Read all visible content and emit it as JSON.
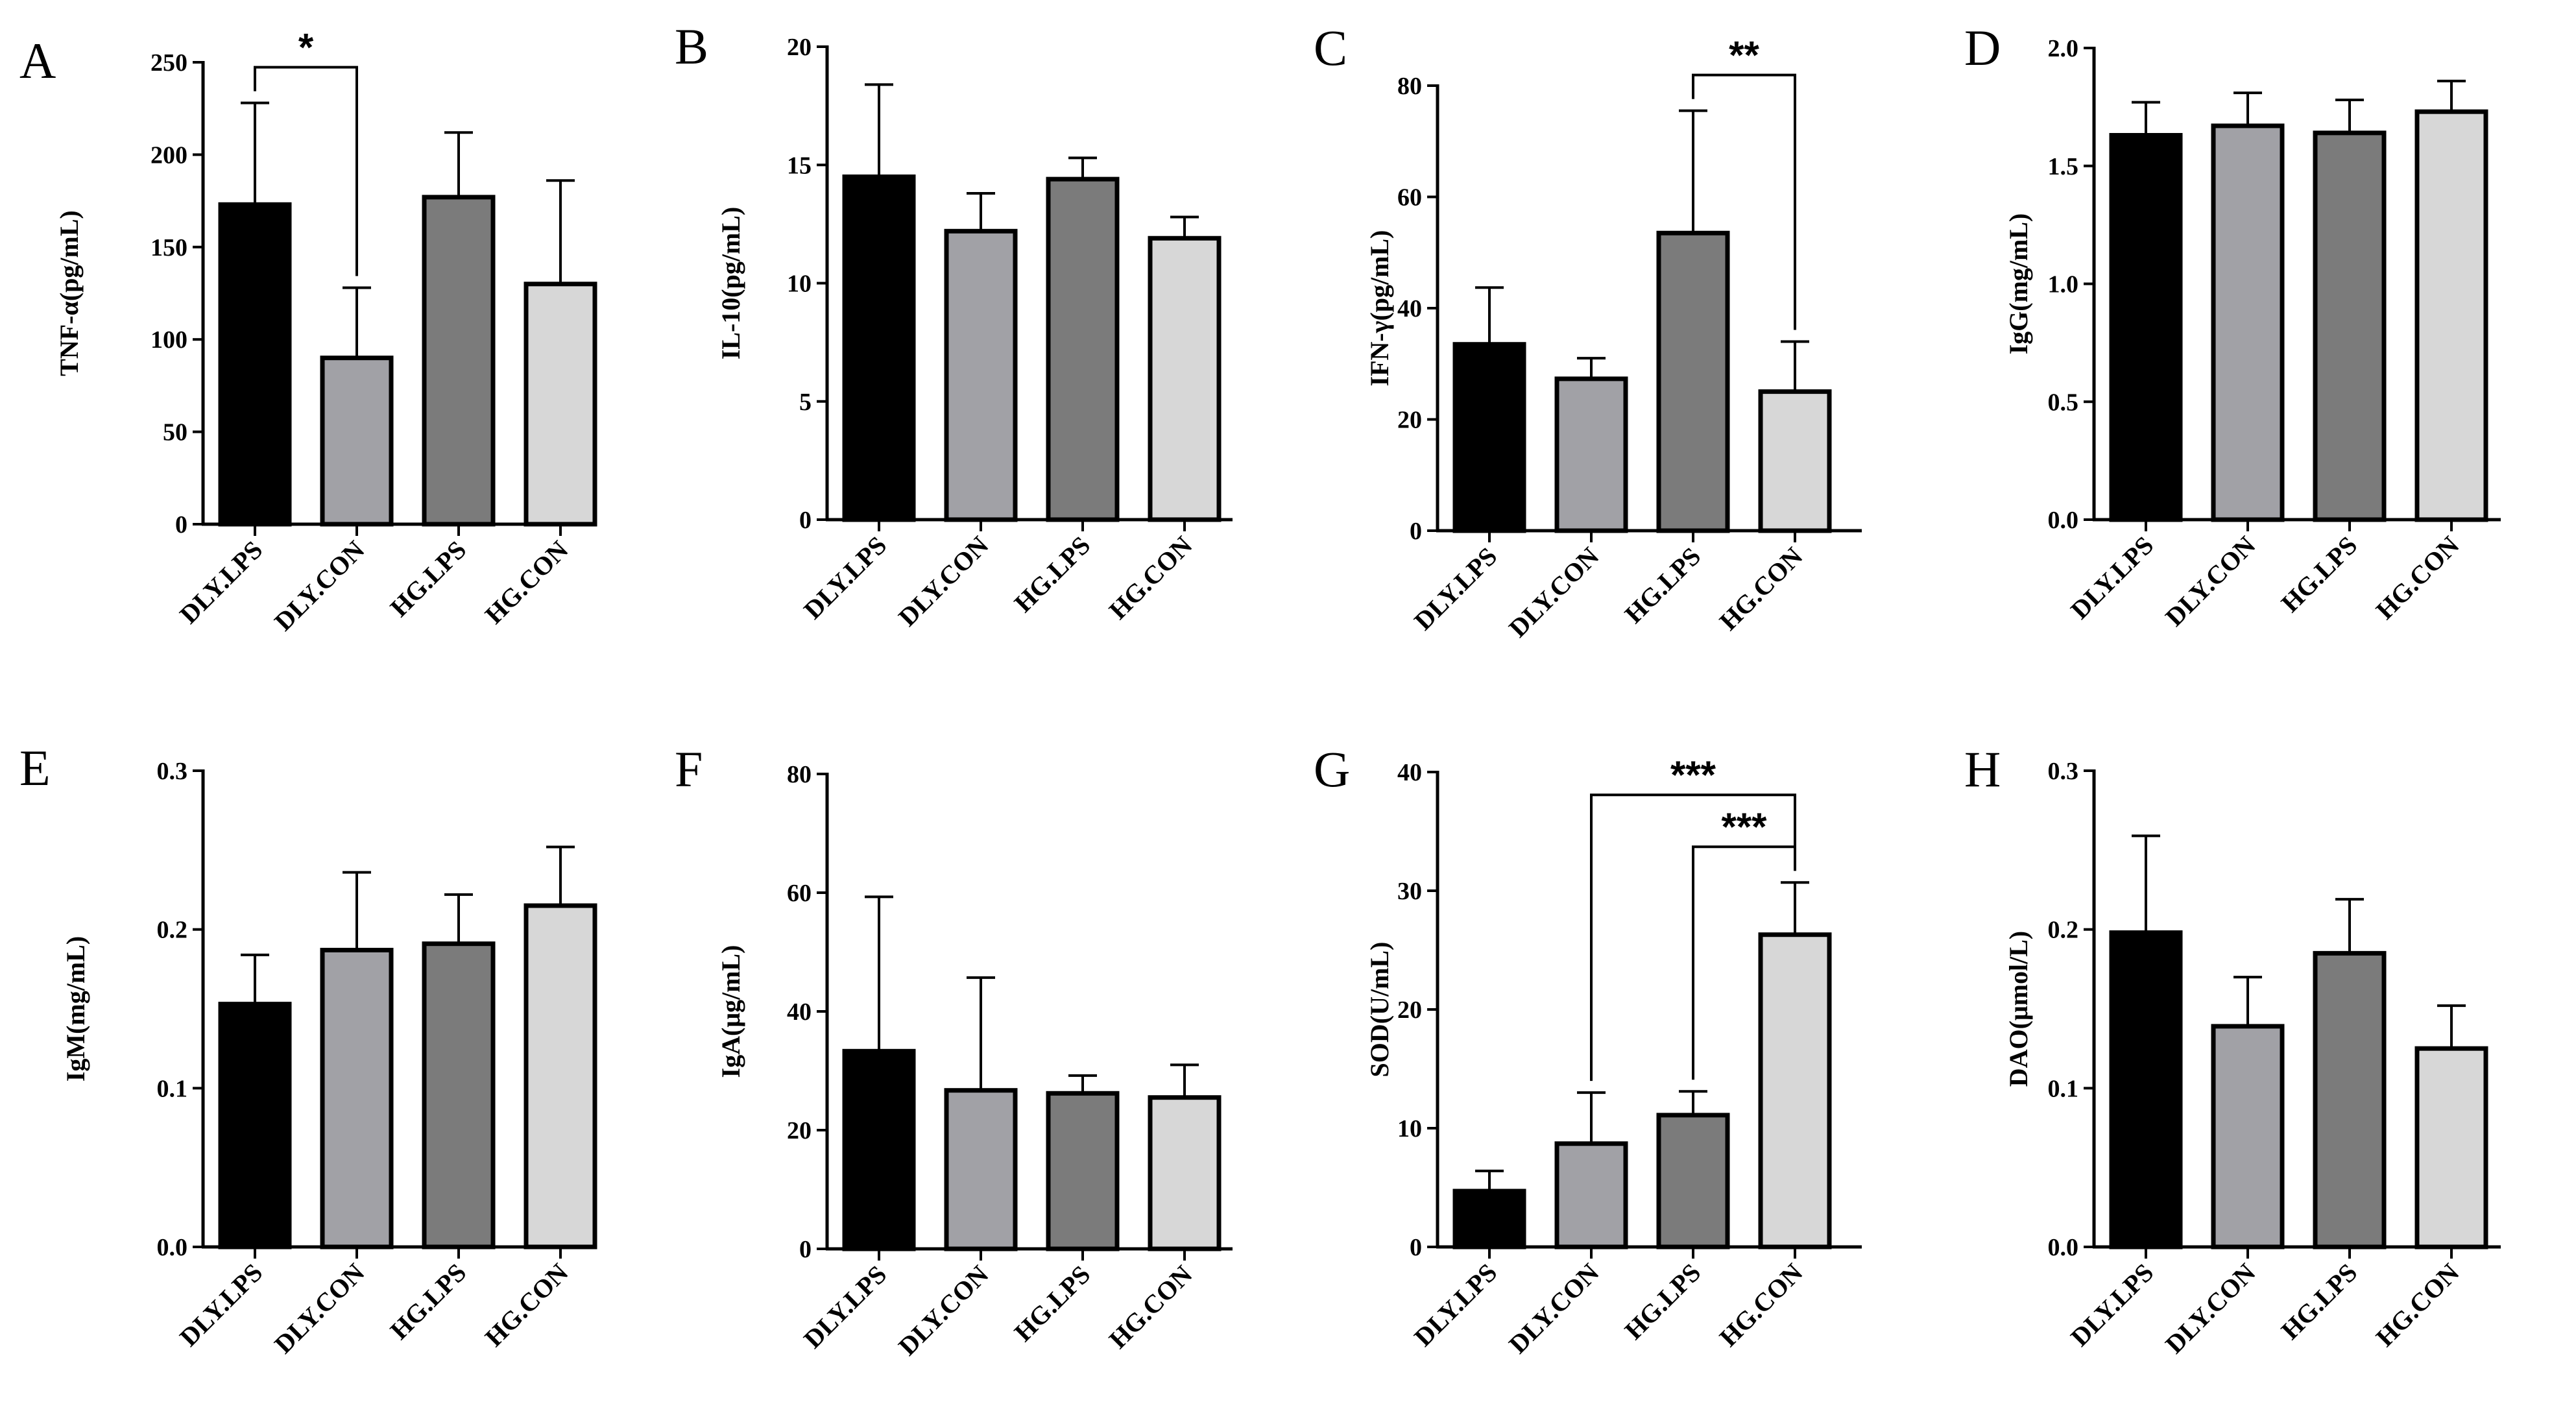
{
  "colors": {
    "DLY.LPS": "#000000",
    "DLY.CON": "#a1a1a6",
    "HG.LPS": "#7b7b7b",
    "HG.CON": "#d7d7d7",
    "axis": "#000000"
  },
  "chart_data": [
    {
      "panel": "A",
      "type": "bar",
      "ylabel": "TNF-α(pg/mL)",
      "categories": [
        "DLY.LPS",
        "DLY.CON",
        "HG.LPS",
        "HG.CON"
      ],
      "values": [
        173,
        90,
        177,
        130
      ],
      "errors": [
        55,
        38,
        35,
        56
      ],
      "ylim": [
        0,
        250
      ],
      "yticks": [
        0,
        50,
        100,
        150,
        200,
        250
      ],
      "ytick_labels": [
        "0",
        "50",
        "100",
        "150",
        "200",
        "250"
      ],
      "significance": [
        {
          "from": 0,
          "to": 1,
          "label": "*"
        }
      ]
    },
    {
      "panel": "B",
      "type": "bar",
      "ylabel": "IL-10(pg/mL)",
      "categories": [
        "DLY.LPS",
        "DLY.CON",
        "HG.LPS",
        "HG.CON"
      ],
      "values": [
        14.5,
        12.2,
        14.4,
        11.9
      ],
      "errors": [
        3.9,
        1.6,
        0.9,
        0.9
      ],
      "ylim": [
        0,
        20
      ],
      "yticks": [
        0,
        5,
        10,
        15,
        20
      ],
      "ytick_labels": [
        "0",
        "5",
        "10",
        "15",
        "20"
      ],
      "significance": []
    },
    {
      "panel": "C",
      "type": "bar",
      "ylabel": "IFN-γ(pg/mL)",
      "categories": [
        "DLY.LPS",
        "DLY.CON",
        "HG.LPS",
        "HG.CON"
      ],
      "values": [
        33.5,
        27.3,
        53.5,
        25
      ],
      "errors": [
        10.2,
        3.7,
        22,
        9
      ],
      "ylim": [
        0,
        80
      ],
      "yticks": [
        0,
        20,
        40,
        60,
        80
      ],
      "ytick_labels": [
        "0",
        "20",
        "40",
        "60",
        "80"
      ],
      "significance": [
        {
          "from": 2,
          "to": 3,
          "label": "**"
        }
      ]
    },
    {
      "panel": "D",
      "type": "bar",
      "ylabel": "IgG(mg/mL)",
      "categories": [
        "DLY.LPS",
        "DLY.CON",
        "HG.LPS",
        "HG.CON"
      ],
      "values": [
        1.63,
        1.67,
        1.64,
        1.73
      ],
      "errors": [
        0.14,
        0.14,
        0.14,
        0.13
      ],
      "ylim": [
        0,
        2
      ],
      "yticks": [
        0,
        0.5,
        1,
        1.5,
        2
      ],
      "ytick_labels": [
        "0.0",
        "0.5",
        "1.0",
        "1.5",
        "2.0"
      ],
      "significance": []
    },
    {
      "panel": "E",
      "type": "bar",
      "ylabel": "IgM(mg/mL)",
      "categories": [
        "DLY.LPS",
        "DLY.CON",
        "HG.LPS",
        "HG.CON"
      ],
      "values": [
        0.153,
        0.187,
        0.191,
        0.215
      ],
      "errors": [
        0.031,
        0.049,
        0.031,
        0.037
      ],
      "ylim": [
        0,
        0.3
      ],
      "yticks": [
        0,
        0.1,
        0.2,
        0.3
      ],
      "ytick_labels": [
        "0.0",
        "0.1",
        "0.2",
        "0.3"
      ],
      "significance": []
    },
    {
      "panel": "F",
      "type": "bar",
      "ylabel": "IgA(μg/mL)",
      "categories": [
        "DLY.LPS",
        "DLY.CON",
        "HG.LPS",
        "HG.CON"
      ],
      "values": [
        33.3,
        26.7,
        26.2,
        25.5
      ],
      "errors": [
        26,
        19,
        3,
        5.5
      ],
      "ylim": [
        0,
        80
      ],
      "yticks": [
        0,
        20,
        40,
        60,
        80
      ],
      "ytick_labels": [
        "0",
        "20",
        "40",
        "60",
        "80"
      ],
      "significance": []
    },
    {
      "panel": "G",
      "type": "bar",
      "ylabel": "SOD(U/mL)",
      "categories": [
        "DLY.LPS",
        "DLY.CON",
        "HG.LPS",
        "HG.CON"
      ],
      "values": [
        4.7,
        8.7,
        11.1,
        26.3
      ],
      "errors": [
        1.7,
        4.3,
        2,
        4.4
      ],
      "ylim": [
        0,
        40
      ],
      "yticks": [
        0,
        10,
        20,
        30,
        40
      ],
      "ytick_labels": [
        "0",
        "10",
        "20",
        "30",
        "40"
      ],
      "significance": [
        {
          "from": 1,
          "to": 3,
          "label": "***"
        },
        {
          "from": 2,
          "to": 3,
          "label": "***"
        }
      ]
    },
    {
      "panel": "H",
      "type": "bar",
      "ylabel": "DAO(μmol/L)",
      "categories": [
        "DLY.LPS",
        "DLY.CON",
        "HG.LPS",
        "HG.CON"
      ],
      "values": [
        0.198,
        0.139,
        0.185,
        0.125
      ],
      "errors": [
        0.061,
        0.031,
        0.034,
        0.027
      ],
      "ylim": [
        0,
        0.3
      ],
      "yticks": [
        0,
        0.1,
        0.2,
        0.3
      ],
      "ytick_labels": [
        "0.0",
        "0.1",
        "0.2",
        "0.3"
      ],
      "significance": []
    }
  ]
}
